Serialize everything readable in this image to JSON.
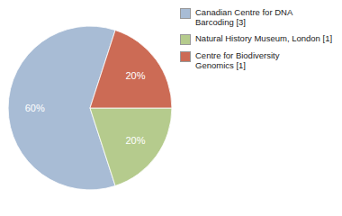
{
  "chart_data": {
    "type": "pie",
    "categories": [
      "Canadian Centre for DNA\nBarcoding [3]",
      "Natural History Museum, London [1]",
      "Centre for Biodiversity\nGenomics [1]"
    ],
    "values": [
      60,
      20,
      20
    ],
    "value_labels": [
      "60%",
      "20%",
      "20%"
    ],
    "colors": [
      "#a8bcd5",
      "#b5cb8d",
      "#cc6b55"
    ],
    "data_labels": true,
    "legend": "right"
  }
}
